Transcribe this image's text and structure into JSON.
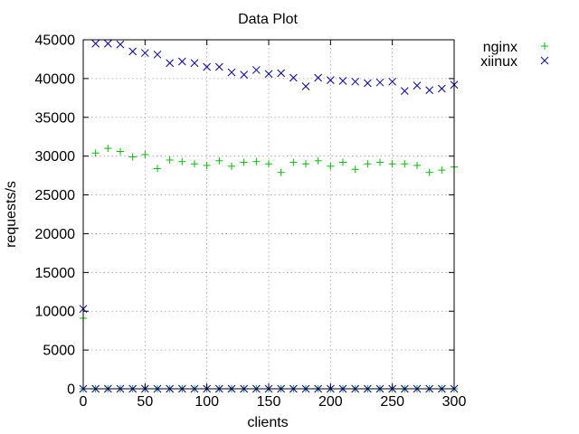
{
  "chart_data": {
    "type": "scatter",
    "title": "Data Plot",
    "xlabel": "clients",
    "ylabel": "requests/s",
    "xlim": [
      0,
      300
    ],
    "ylim": [
      0,
      45000
    ],
    "xticks": [
      0,
      50,
      100,
      150,
      200,
      250,
      300
    ],
    "yticks": [
      0,
      5000,
      10000,
      15000,
      20000,
      25000,
      30000,
      35000,
      40000,
      45000
    ],
    "grid": true,
    "legend_position": "top-right outside",
    "series": [
      {
        "name": "nginx",
        "marker": "plus",
        "color": "#00c000",
        "points": [
          [
            0,
            9100
          ],
          [
            10,
            30400
          ],
          [
            20,
            31000
          ],
          [
            30,
            30600
          ],
          [
            40,
            29900
          ],
          [
            50,
            30200
          ],
          [
            60,
            28400
          ],
          [
            70,
            29500
          ],
          [
            80,
            29300
          ],
          [
            90,
            29000
          ],
          [
            100,
            28800
          ],
          [
            110,
            29400
          ],
          [
            120,
            28700
          ],
          [
            130,
            29200
          ],
          [
            140,
            29300
          ],
          [
            150,
            29000
          ],
          [
            160,
            27900
          ],
          [
            170,
            29200
          ],
          [
            180,
            29000
          ],
          [
            190,
            29400
          ],
          [
            200,
            28700
          ],
          [
            210,
            29200
          ],
          [
            220,
            28300
          ],
          [
            230,
            29000
          ],
          [
            240,
            29200
          ],
          [
            250,
            29000
          ],
          [
            260,
            29000
          ],
          [
            270,
            28800
          ],
          [
            280,
            27900
          ],
          [
            290,
            28200
          ],
          [
            300,
            28600
          ],
          [
            0,
            0
          ],
          [
            10,
            0
          ],
          [
            20,
            0
          ],
          [
            30,
            0
          ],
          [
            40,
            0
          ],
          [
            50,
            0
          ],
          [
            60,
            0
          ],
          [
            70,
            0
          ],
          [
            80,
            0
          ],
          [
            90,
            0
          ],
          [
            100,
            0
          ],
          [
            110,
            0
          ],
          [
            120,
            0
          ],
          [
            130,
            0
          ],
          [
            140,
            0
          ],
          [
            150,
            0
          ],
          [
            160,
            0
          ],
          [
            170,
            0
          ],
          [
            180,
            0
          ],
          [
            190,
            0
          ],
          [
            200,
            0
          ],
          [
            210,
            0
          ],
          [
            220,
            0
          ],
          [
            230,
            0
          ],
          [
            240,
            0
          ],
          [
            250,
            0
          ],
          [
            260,
            0
          ],
          [
            270,
            0
          ],
          [
            280,
            0
          ],
          [
            290,
            0
          ],
          [
            300,
            0
          ]
        ]
      },
      {
        "name": "xiinux",
        "marker": "cross",
        "color": "#0000c0",
        "points": [
          [
            0,
            10300
          ],
          [
            10,
            44500
          ],
          [
            20,
            44500
          ],
          [
            30,
            44400
          ],
          [
            40,
            43500
          ],
          [
            50,
            43300
          ],
          [
            60,
            43100
          ],
          [
            70,
            42000
          ],
          [
            80,
            42200
          ],
          [
            90,
            42000
          ],
          [
            100,
            41500
          ],
          [
            110,
            41500
          ],
          [
            120,
            40800
          ],
          [
            130,
            40500
          ],
          [
            140,
            41100
          ],
          [
            150,
            40600
          ],
          [
            160,
            40700
          ],
          [
            170,
            40100
          ],
          [
            180,
            39000
          ],
          [
            190,
            40100
          ],
          [
            200,
            39800
          ],
          [
            210,
            39700
          ],
          [
            220,
            39600
          ],
          [
            230,
            39400
          ],
          [
            240,
            39500
          ],
          [
            250,
            39600
          ],
          [
            260,
            38400
          ],
          [
            270,
            39100
          ],
          [
            280,
            38500
          ],
          [
            290,
            38700
          ],
          [
            300,
            39200
          ],
          [
            0,
            0
          ],
          [
            10,
            0
          ],
          [
            20,
            0
          ],
          [
            30,
            0
          ],
          [
            40,
            0
          ],
          [
            50,
            0
          ],
          [
            60,
            0
          ],
          [
            70,
            0
          ],
          [
            80,
            0
          ],
          [
            90,
            0
          ],
          [
            100,
            0
          ],
          [
            110,
            0
          ],
          [
            120,
            0
          ],
          [
            130,
            0
          ],
          [
            140,
            0
          ],
          [
            150,
            0
          ],
          [
            160,
            0
          ],
          [
            170,
            0
          ],
          [
            180,
            0
          ],
          [
            190,
            0
          ],
          [
            200,
            0
          ],
          [
            210,
            0
          ],
          [
            220,
            0
          ],
          [
            230,
            0
          ],
          [
            240,
            0
          ],
          [
            250,
            0
          ],
          [
            260,
            0
          ],
          [
            270,
            0
          ],
          [
            280,
            0
          ],
          [
            290,
            0
          ],
          [
            300,
            0
          ]
        ]
      }
    ]
  }
}
